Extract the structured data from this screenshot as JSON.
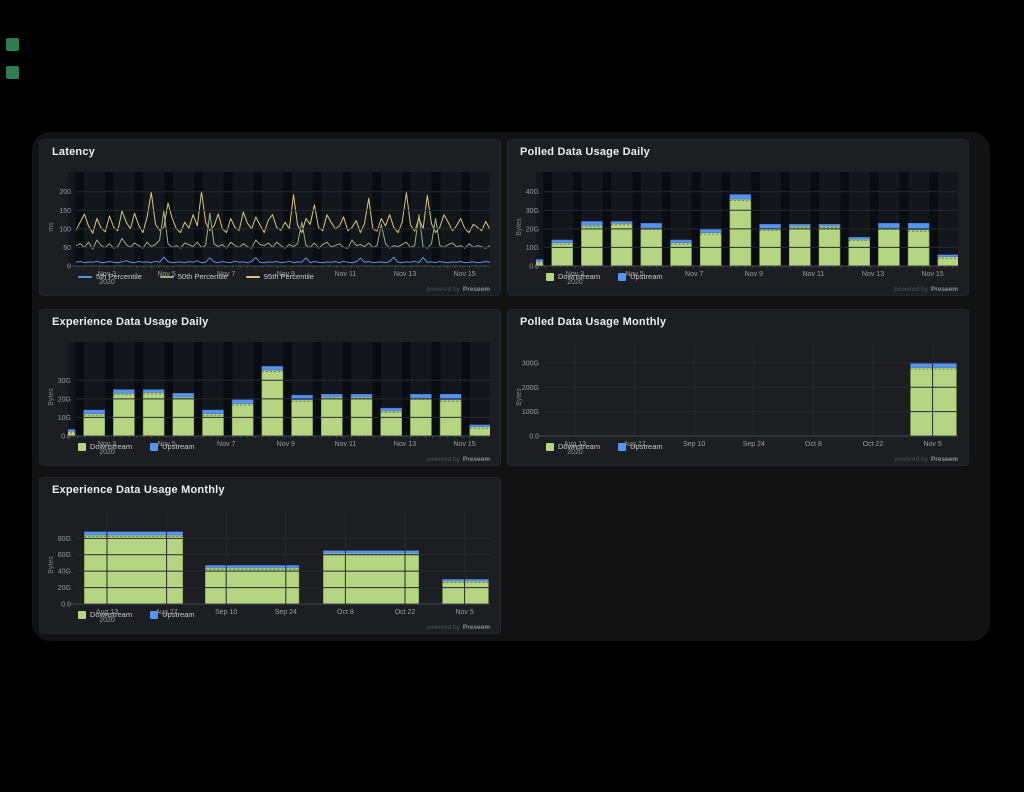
{
  "footer": {
    "prefix": "powered by",
    "brand": "Preseem"
  },
  "markers": {
    "color": "#2f7d4f"
  },
  "colors": {
    "downstream": "#b5d583",
    "upstream": "#5794f2",
    "p5": "#5794f2",
    "p50": "#96b084",
    "p95": "#d8c878"
  },
  "chart_data": [
    {
      "panel": "latency",
      "type": "line",
      "title": "Latency",
      "ylabel": "ms",
      "ylim": [
        0,
        210
      ],
      "yticks": [
        0,
        50,
        100,
        150,
        200
      ],
      "ytick_labels": [
        "0",
        "50",
        "100",
        "150",
        "200"
      ],
      "xtick_labels": [
        "Nov 3|2020",
        "Nov 5",
        "Nov 7",
        "Nov 9",
        "Nov 11",
        "Nov 13",
        "Nov 15"
      ],
      "stripes": true,
      "legend_position": "bottom",
      "series": [
        {
          "name": "5th Percentile",
          "color": "#5794f2",
          "values": [
            10,
            12,
            9,
            11,
            10,
            13,
            9,
            10,
            12,
            10,
            9,
            11,
            14,
            10,
            9,
            12,
            10,
            11,
            9,
            13,
            10,
            24,
            12,
            9,
            10,
            11,
            9,
            12,
            10,
            14,
            9,
            10,
            22,
            11,
            9,
            12,
            10,
            9,
            13,
            10,
            11,
            9,
            12,
            23,
            10,
            9,
            11,
            10,
            12,
            9,
            10,
            13,
            9,
            11,
            10,
            22,
            9,
            12,
            10,
            9,
            11,
            10,
            12,
            9,
            13,
            10,
            9,
            11,
            21,
            10,
            12,
            9,
            10,
            11,
            9,
            12,
            24,
            10,
            9,
            11,
            10,
            13,
            9,
            23,
            10,
            11,
            9,
            12,
            10,
            9,
            11,
            10,
            12,
            9,
            10,
            11,
            9,
            10,
            12,
            10
          ]
        },
        {
          "name": "50th Percentile",
          "color": "#96b084",
          "values": [
            55,
            60,
            50,
            64,
            46,
            70,
            55,
            50,
            60,
            48,
            52,
            74,
            58,
            50,
            62,
            55,
            48,
            64,
            52,
            58,
            70,
            148,
            60,
            50,
            55,
            48,
            62,
            58,
            52,
            64,
            50,
            55,
            142,
            60,
            52,
            58,
            48,
            64,
            55,
            50,
            60,
            52,
            48,
            70,
            58,
            55,
            62,
            50,
            64,
            55,
            48,
            58,
            52,
            60,
            118,
            55,
            50,
            62,
            48,
            58,
            64,
            52,
            55,
            60,
            50,
            48,
            70,
            55,
            58,
            52,
            62,
            50,
            55,
            112,
            60,
            48,
            55,
            52,
            58,
            64,
            50,
            55,
            138,
            52,
            48,
            60,
            128,
            55,
            50,
            58,
            62,
            52,
            55,
            48,
            60,
            50,
            55,
            52,
            48,
            55
          ]
        },
        {
          "name": "95th Percentile",
          "color": "#d8c878",
          "values": [
            96,
            118,
            140,
            108,
            88,
            128,
            102,
            92,
            135,
            105,
            95,
            148,
            118,
            100,
            142,
            110,
            90,
            132,
            198,
            112,
            96,
            104,
            170,
            128,
            100,
            90,
            118,
            102,
            138,
            108,
            200,
            118,
            95,
            108,
            140,
            100,
            90,
            128,
            104,
            96,
            145,
            115,
            100,
            132,
            110,
            90,
            124,
            138,
            104,
            96,
            118,
            100,
            192,
            110,
            90,
            128,
            112,
            165,
            104,
            95,
            138,
            118,
            100,
            108,
            132,
            95,
            104,
            122,
            90,
            114,
            182,
            100,
            94,
            128,
            108,
            138,
            104,
            90,
            118,
            198,
            110,
            94,
            128,
            100,
            190,
            114,
            90,
            104,
            138,
            118,
            95,
            108,
            128,
            100,
            90,
            112,
            104,
            95,
            120,
            98
          ]
        }
      ]
    },
    {
      "panel": "polled-daily",
      "type": "bar",
      "stacked": true,
      "title": "Polled Data Usage Daily",
      "ylabel": "Bytes",
      "ylim": [
        0,
        42
      ],
      "yticks": [
        0,
        10,
        20,
        30,
        40
      ],
      "ytick_labels": [
        "0.0",
        "10G",
        "20G",
        "30G",
        "40G"
      ],
      "xtick_labels": [
        "Nov 3|2020",
        "Nov 5",
        "Nov 7",
        "Nov 9",
        "Nov 11",
        "Nov 13",
        "Nov 15"
      ],
      "stripes": true,
      "legend_position": "bottom",
      "series": [
        {
          "name": "Downstream",
          "color": "#b5d583",
          "values": [
            2.5,
            12.5,
            22,
            23,
            20.5,
            12.5,
            18,
            36,
            20,
            21.5,
            21.5,
            14.5,
            20.5,
            19.5,
            5
          ]
        },
        {
          "name": "Upstream",
          "color": "#5794f2",
          "values": [
            1,
            1.5,
            2,
            1,
            2.5,
            1.5,
            2,
            2.5,
            2.5,
            1,
            1,
            1,
            2.5,
            3.5,
            1
          ]
        }
      ]
    },
    {
      "panel": "experience-daily",
      "type": "bar",
      "stacked": true,
      "title": "Experience Data Usage Daily",
      "ylabel": "Bytes",
      "ylim": [
        0,
        42
      ],
      "yticks": [
        0,
        10,
        20,
        30
      ],
      "ytick_labels": [
        "0.0",
        "10G",
        "20G",
        "30G"
      ],
      "xtick_labels": [
        "Nov 3|2020",
        "Nov 5",
        "Nov 7",
        "Nov 9",
        "Nov 11",
        "Nov 13",
        "Nov 15"
      ],
      "stripes": true,
      "legend_position": "bottom",
      "series": [
        {
          "name": "Downstream",
          "color": "#b5d583",
          "values": [
            2.5,
            12,
            23,
            23.5,
            21,
            12,
            17.5,
            35.5,
            19.5,
            21,
            21,
            13.5,
            20.5,
            19.5,
            5
          ]
        },
        {
          "name": "Upstream",
          "color": "#5794f2",
          "values": [
            1,
            2,
            2,
            1.5,
            2,
            2,
            2,
            2,
            2.5,
            1.5,
            1.5,
            1.5,
            2,
            3,
            1
          ]
        }
      ]
    },
    {
      "panel": "polled-monthly",
      "type": "span-bar",
      "stacked": true,
      "title": "Polled Data Usage Monthly",
      "ylabel": "Bytes",
      "ylim": [
        0,
        320
      ],
      "yticks": [
        0,
        100,
        200,
        300
      ],
      "ytick_labels": [
        "0.0",
        "100G",
        "200G",
        "300G"
      ],
      "xtick_labels": [
        "Aug 13|2020",
        "Aug 27",
        "Sep 10",
        "Sep 24",
        "Oct 8",
        "Oct 22",
        "Nov 5"
      ],
      "vgrid": true,
      "legend_position": "bottom",
      "series": [
        {
          "name": "Downstream",
          "color": "#b5d583"
        },
        {
          "name": "Upstream",
          "color": "#5794f2"
        }
      ],
      "bars": [
        {
          "span": [
            5.63,
            6.4
          ],
          "downstream": 281,
          "upstream": 17
        }
      ]
    },
    {
      "panel": "experience-monthly",
      "type": "span-bar",
      "stacked": true,
      "title": "Experience Data Usage Monthly",
      "ylabel": "Bytes",
      "ylim": [
        0,
        95
      ],
      "yticks": [
        0,
        20,
        40,
        60,
        80
      ],
      "ytick_labels": [
        "0.0",
        "20G",
        "40G",
        "60G",
        "80G"
      ],
      "xtick_labels": [
        "Aug 13|2020",
        "Aug 27",
        "Sep 10",
        "Sep 24",
        "Oct 8",
        "Oct 22",
        "Nov 5"
      ],
      "vgrid": true,
      "legend_position": "bottom",
      "series": [
        {
          "name": "Downstream",
          "color": "#b5d583"
        },
        {
          "name": "Upstream",
          "color": "#5794f2"
        }
      ],
      "bars": [
        {
          "span": [
            -0.38,
            1.27
          ],
          "downstream": 84,
          "upstream": 4
        },
        {
          "span": [
            1.65,
            3.22
          ],
          "downstream": 44,
          "upstream": 3
        },
        {
          "span": [
            3.63,
            5.23
          ],
          "downstream": 62,
          "upstream": 3
        },
        {
          "span": [
            5.63,
            6.4
          ],
          "downstream": 28,
          "upstream": 2
        }
      ]
    }
  ]
}
